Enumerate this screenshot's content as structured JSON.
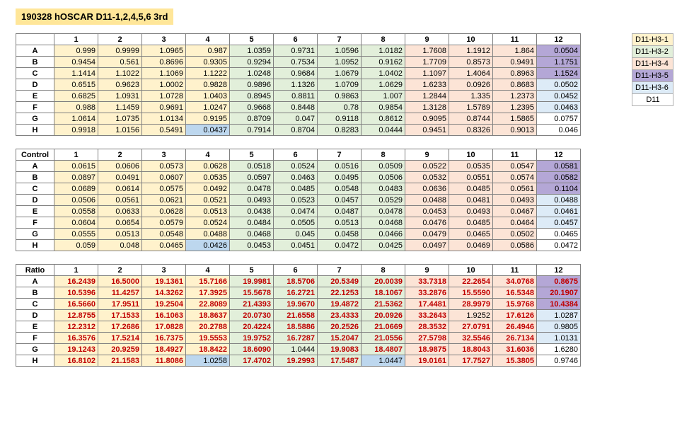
{
  "title": "190328 hOSCAR D11-1,2,4,5,6 3rd",
  "column_headers": [
    "1",
    "2",
    "3",
    "4",
    "5",
    "6",
    "7",
    "8",
    "9",
    "10",
    "11",
    "12"
  ],
  "row_headers": [
    "A",
    "B",
    "C",
    "D",
    "E",
    "F",
    "G",
    "H"
  ],
  "section_labels": {
    "control": "Control",
    "ratio": "Ratio"
  },
  "col_colors": {
    "1": "#fff2cc",
    "2": "#fff2cc",
    "3": "#fff2cc",
    "4": "#fff2cc",
    "5": "#e2efda",
    "6": "#e2efda",
    "7": "#e2efda",
    "8": "#e2efda",
    "9": "#fce4d6",
    "10": "#fce4d6",
    "11": "#fce4d6"
  },
  "special_cells": {
    "main": {
      "H-4": "#bdd7ee",
      "A-12": "#b4a7d6",
      "B-12": "#b4a7d6",
      "C-12": "#b4a7d6",
      "D-12": "#ddebf7",
      "E-12": "#ddebf7",
      "F-12": "#ddebf7",
      "G-12": "#ffffff",
      "H-12": "#ffffff"
    },
    "control": {
      "H-4": "#bdd7ee",
      "A-12": "#b4a7d6",
      "B-12": "#b4a7d6",
      "C-12": "#b4a7d6",
      "D-12": "#ddebf7",
      "E-12": "#ddebf7",
      "F-12": "#ddebf7",
      "G-12": "#ffffff",
      "H-12": "#ffffff"
    },
    "ratio": {
      "H-4": "#bdd7ee",
      "H-8": "#bdd7ee",
      "A-12": "#b4a7d6",
      "B-12": "#b4a7d6",
      "C-12": "#b4a7d6",
      "D-12": "#ddebf7",
      "E-12": "#ddebf7",
      "F-12": "#ddebf7",
      "G-12": "#ffffff",
      "H-12": "#ffffff"
    }
  },
  "ratio_black": [
    "D-10",
    "G-6",
    "H-4",
    "H-8",
    "D-12",
    "E-12",
    "F-12",
    "G-12",
    "H-12"
  ],
  "tables": {
    "main": [
      [
        "0.999",
        "0.9999",
        "1.0965",
        "0.987",
        "1.0359",
        "0.9731",
        "1.0596",
        "1.0182",
        "1.7608",
        "1.1912",
        "1.864",
        "0.0504"
      ],
      [
        "0.9454",
        "0.561",
        "0.8696",
        "0.9305",
        "0.9294",
        "0.7534",
        "1.0952",
        "0.9162",
        "1.7709",
        "0.8573",
        "0.9491",
        "1.1751"
      ],
      [
        "1.1414",
        "1.1022",
        "1.1069",
        "1.1222",
        "1.0248",
        "0.9684",
        "1.0679",
        "1.0402",
        "1.1097",
        "1.4064",
        "0.8963",
        "1.1524"
      ],
      [
        "0.6515",
        "0.9623",
        "1.0002",
        "0.9828",
        "0.9896",
        "1.1326",
        "1.0709",
        "1.0629",
        "1.6233",
        "0.0926",
        "0.8683",
        "0.0502"
      ],
      [
        "0.6825",
        "1.0931",
        "1.0728",
        "1.0403",
        "0.8945",
        "0.8811",
        "0.9863",
        "1.007",
        "1.2844",
        "1.335",
        "1.2373",
        "0.0452"
      ],
      [
        "0.988",
        "1.1459",
        "0.9691",
        "1.0247",
        "0.9668",
        "0.8448",
        "0.78",
        "0.9854",
        "1.3128",
        "1.5789",
        "1.2395",
        "0.0463"
      ],
      [
        "1.0614",
        "1.0735",
        "1.0134",
        "0.9195",
        "0.8709",
        "0.047",
        "0.9118",
        "0.8612",
        "0.9095",
        "0.8744",
        "1.5865",
        "0.0757"
      ],
      [
        "0.9918",
        "1.0156",
        "0.5491",
        "0.0437",
        "0.7914",
        "0.8704",
        "0.8283",
        "0.0444",
        "0.9451",
        "0.8326",
        "0.9013",
        "0.046"
      ]
    ],
    "control": [
      [
        "0.0615",
        "0.0606",
        "0.0573",
        "0.0628",
        "0.0518",
        "0.0524",
        "0.0516",
        "0.0509",
        "0.0522",
        "0.0535",
        "0.0547",
        "0.0581"
      ],
      [
        "0.0897",
        "0.0491",
        "0.0607",
        "0.0535",
        "0.0597",
        "0.0463",
        "0.0495",
        "0.0506",
        "0.0532",
        "0.0551",
        "0.0574",
        "0.0582"
      ],
      [
        "0.0689",
        "0.0614",
        "0.0575",
        "0.0492",
        "0.0478",
        "0.0485",
        "0.0548",
        "0.0483",
        "0.0636",
        "0.0485",
        "0.0561",
        "0.1104"
      ],
      [
        "0.0506",
        "0.0561",
        "0.0621",
        "0.0521",
        "0.0493",
        "0.0523",
        "0.0457",
        "0.0529",
        "0.0488",
        "0.0481",
        "0.0493",
        "0.0488"
      ],
      [
        "0.0558",
        "0.0633",
        "0.0628",
        "0.0513",
        "0.0438",
        "0.0474",
        "0.0487",
        "0.0478",
        "0.0453",
        "0.0493",
        "0.0467",
        "0.0461"
      ],
      [
        "0.0604",
        "0.0654",
        "0.0579",
        "0.0524",
        "0.0484",
        "0.0505",
        "0.0513",
        "0.0468",
        "0.0476",
        "0.0485",
        "0.0464",
        "0.0457"
      ],
      [
        "0.0555",
        "0.0513",
        "0.0548",
        "0.0488",
        "0.0468",
        "0.045",
        "0.0458",
        "0.0466",
        "0.0479",
        "0.0465",
        "0.0502",
        "0.0465"
      ],
      [
        "0.059",
        "0.048",
        "0.0465",
        "0.0426",
        "0.0453",
        "0.0451",
        "0.0472",
        "0.0425",
        "0.0497",
        "0.0469",
        "0.0586",
        "0.0472"
      ]
    ],
    "ratio": [
      [
        "16.2439",
        "16.5000",
        "19.1361",
        "15.7166",
        "19.9981",
        "18.5706",
        "20.5349",
        "20.0039",
        "33.7318",
        "22.2654",
        "34.0768",
        "0.8675"
      ],
      [
        "10.5396",
        "11.4257",
        "14.3262",
        "17.3925",
        "15.5678",
        "16.2721",
        "22.1253",
        "18.1067",
        "33.2876",
        "15.5590",
        "16.5348",
        "20.1907"
      ],
      [
        "16.5660",
        "17.9511",
        "19.2504",
        "22.8089",
        "21.4393",
        "19.9670",
        "19.4872",
        "21.5362",
        "17.4481",
        "28.9979",
        "15.9768",
        "10.4384"
      ],
      [
        "12.8755",
        "17.1533",
        "16.1063",
        "18.8637",
        "20.0730",
        "21.6558",
        "23.4333",
        "20.0926",
        "33.2643",
        "1.9252",
        "17.6126",
        "1.0287"
      ],
      [
        "12.2312",
        "17.2686",
        "17.0828",
        "20.2788",
        "20.4224",
        "18.5886",
        "20.2526",
        "21.0669",
        "28.3532",
        "27.0791",
        "26.4946",
        "0.9805"
      ],
      [
        "16.3576",
        "17.5214",
        "16.7375",
        "19.5553",
        "19.9752",
        "16.7287",
        "15.2047",
        "21.0556",
        "27.5798",
        "32.5546",
        "26.7134",
        "1.0131"
      ],
      [
        "19.1243",
        "20.9259",
        "18.4927",
        "18.8422",
        "18.6090",
        "1.0444",
        "19.9083",
        "18.4807",
        "18.9875",
        "18.8043",
        "31.6036",
        "1.6280"
      ],
      [
        "16.8102",
        "21.1583",
        "11.8086",
        "1.0258",
        "17.4702",
        "19.2993",
        "17.5487",
        "1.0447",
        "19.0161",
        "17.7527",
        "15.3805",
        "0.9746"
      ]
    ]
  },
  "legend": [
    {
      "label": "D11-H3-1",
      "bg": "#fff2cc"
    },
    {
      "label": "D11-H3-2",
      "bg": "#e2efda"
    },
    {
      "label": "D11-H3-4",
      "bg": "#fce4d6"
    },
    {
      "label": "D11-H3-5",
      "bg": "#b4a7d6"
    },
    {
      "label": "D11-H3-6",
      "bg": "#ddebf7"
    },
    {
      "label": "D11",
      "bg": "#ffffff"
    }
  ]
}
